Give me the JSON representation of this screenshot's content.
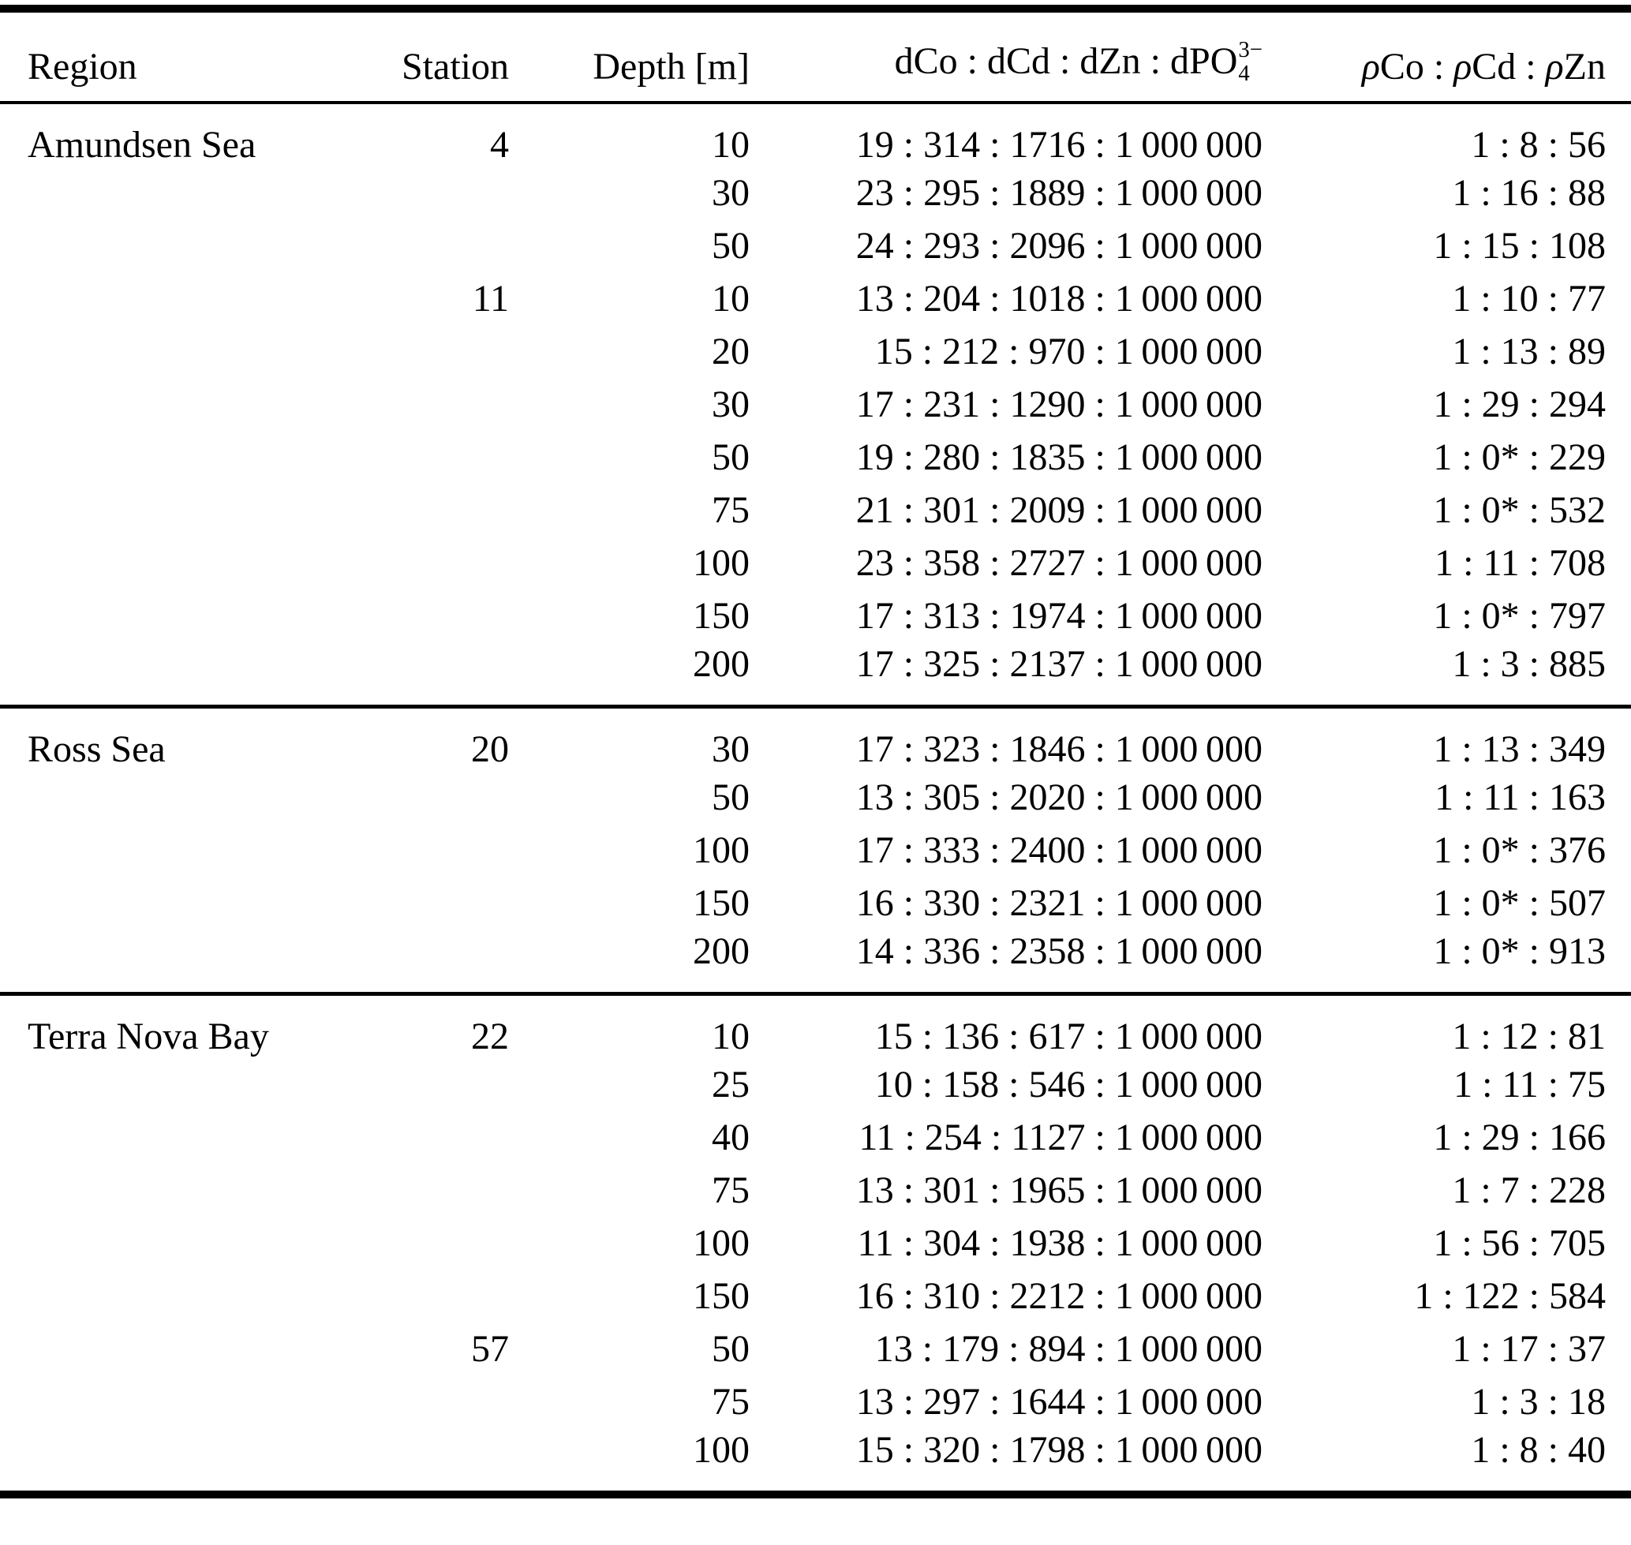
{
  "table": {
    "header": {
      "region": "Region",
      "station": "Station",
      "depth": "Depth [m]",
      "ratio_prefix": "dCo : dCd : dZn : dPO",
      "ratio_sup": "3−",
      "ratio_sub": "4",
      "rho_parts": [
        {
          "text": "ρ",
          "italic": true
        },
        {
          "text": "Co : ",
          "italic": false
        },
        {
          "text": "ρ",
          "italic": true
        },
        {
          "text": "Cd : ",
          "italic": false
        },
        {
          "text": "ρ",
          "italic": true
        },
        {
          "text": "Zn",
          "italic": false
        }
      ]
    },
    "sections": [
      {
        "region": "Amundsen Sea",
        "groups": [
          {
            "station": "4",
            "rows": [
              {
                "depth": "10",
                "ratio": "19 : 314 : 1716 : 1 000 000",
                "rho": "1 : 8 : 56"
              },
              {
                "depth": "30",
                "ratio": "23 : 295 : 1889 : 1 000 000",
                "rho": "1 : 16 : 88"
              },
              {
                "depth": "50",
                "ratio": "24 : 293 : 2096 : 1 000 000",
                "rho": "1 : 15 : 108"
              }
            ]
          },
          {
            "station": "11",
            "rows": [
              {
                "depth": "10",
                "ratio": "13 : 204 : 1018 : 1 000 000",
                "rho": "1 : 10 : 77"
              },
              {
                "depth": "20",
                "ratio": "15 : 212 : 970 : 1 000 000",
                "rho": "1 : 13 : 89"
              },
              {
                "depth": "30",
                "ratio": "17 : 231 : 1290 : 1 000 000",
                "rho": "1 : 29 : 294"
              },
              {
                "depth": "50",
                "ratio": "19 : 280 : 1835 : 1 000 000",
                "rho": "1 : 0* : 229"
              },
              {
                "depth": "75",
                "ratio": "21 : 301 : 2009 : 1 000 000",
                "rho": "1 : 0* : 532"
              },
              {
                "depth": "100",
                "ratio": "23 : 358 : 2727 : 1 000 000",
                "rho": "1 : 11 : 708"
              },
              {
                "depth": "150",
                "ratio": "17 : 313 : 1974 : 1 000 000",
                "rho": "1 : 0* : 797"
              },
              {
                "depth": "200",
                "ratio": "17 : 325 : 2137 : 1 000 000",
                "rho": "1 : 3 : 885"
              }
            ]
          }
        ]
      },
      {
        "region": "Ross Sea",
        "groups": [
          {
            "station": "20",
            "rows": [
              {
                "depth": "30",
                "ratio": "17 : 323 : 1846 : 1 000 000",
                "rho": "1 : 13 : 349"
              },
              {
                "depth": "50",
                "ratio": "13 : 305 : 2020 : 1 000 000",
                "rho": "1 : 11 : 163"
              },
              {
                "depth": "100",
                "ratio": "17 : 333 : 2400 : 1 000 000",
                "rho": "1 : 0* : 376"
              },
              {
                "depth": "150",
                "ratio": "16 : 330 : 2321 : 1 000 000",
                "rho": "1 : 0* : 507"
              },
              {
                "depth": "200",
                "ratio": "14 : 336 : 2358 : 1 000 000",
                "rho": "1 : 0* : 913"
              }
            ]
          }
        ]
      },
      {
        "region": "Terra Nova Bay",
        "groups": [
          {
            "station": "22",
            "rows": [
              {
                "depth": "10",
                "ratio": "15 : 136 : 617 : 1 000 000",
                "rho": "1 : 12 : 81"
              },
              {
                "depth": "25",
                "ratio": "10 : 158 : 546 : 1 000 000",
                "rho": "1 : 11 : 75"
              },
              {
                "depth": "40",
                "ratio": "11 : 254 : 1127 : 1 000 000",
                "rho": "1 : 29 : 166"
              },
              {
                "depth": "75",
                "ratio": "13 : 301 : 1965 : 1 000 000",
                "rho": "1 : 7 : 228"
              },
              {
                "depth": "100",
                "ratio": "11 : 304 : 1938 : 1 000 000",
                "rho": "1 : 56 : 705"
              },
              {
                "depth": "150",
                "ratio": "16 : 310 : 2212 : 1 000 000",
                "rho": "1 : 122 : 584"
              }
            ]
          },
          {
            "station": "57",
            "rows": [
              {
                "depth": "50",
                "ratio": "13 : 179 : 894 : 1 000 000",
                "rho": "1 : 17 : 37"
              },
              {
                "depth": "75",
                "ratio": "13 : 297 : 1644 : 1 000 000",
                "rho": "1 : 3 : 18"
              },
              {
                "depth": "100",
                "ratio": "15 : 320 : 1798 : 1 000 000",
                "rho": "1 : 8 : 40"
              }
            ]
          }
        ]
      }
    ]
  }
}
